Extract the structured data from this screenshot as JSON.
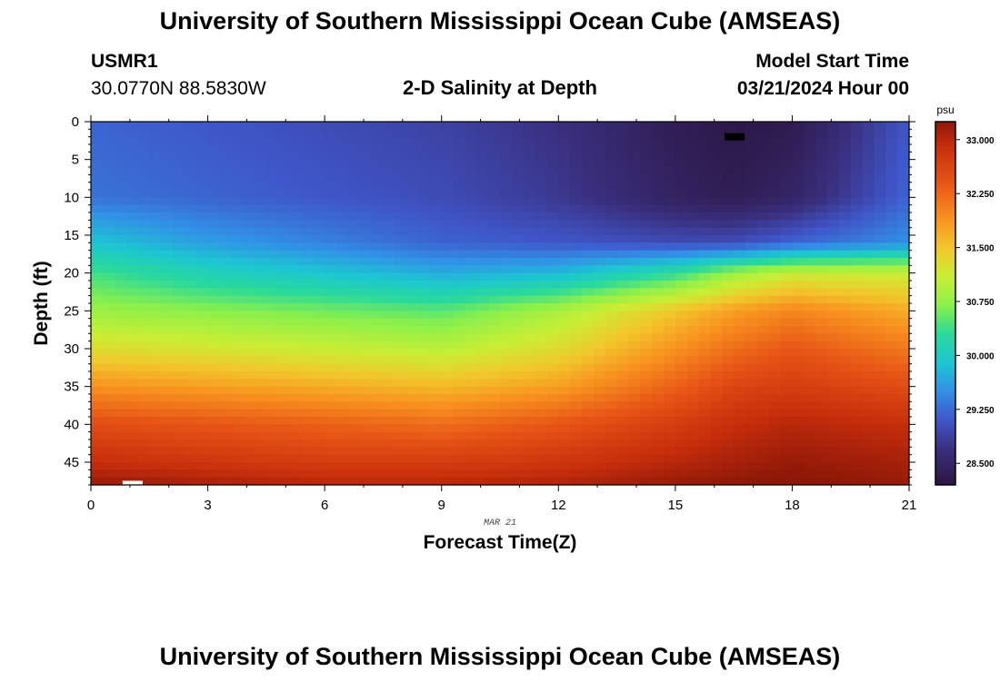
{
  "header": {
    "title": "University of Southern Mississippi Ocean Cube (AMSEAS)",
    "station_id": "USMR1",
    "location": "30.0770N  88.5830W",
    "subtitle": "2-D Salinity at Depth",
    "start_label": "Model Start Time",
    "start_value": "03/21/2024 Hour 00"
  },
  "footer": {
    "title": "University of Southern Mississippi Ocean Cube (AMSEAS)"
  },
  "chart_data": {
    "type": "heatmap",
    "title": "2-D Salinity at Depth",
    "xlabel": "Forecast Time(Z)",
    "ylabel": "Depth (ft)",
    "date_label": "MAR 21",
    "xlim": [
      0,
      21
    ],
    "ylim": [
      48,
      0
    ],
    "x_ticks": [
      "0",
      "3",
      "6",
      "9",
      "12",
      "15",
      "18",
      "21"
    ],
    "y_ticks": [
      "0",
      "5",
      "10",
      "15",
      "20",
      "25",
      "30",
      "35",
      "40",
      "45"
    ],
    "x_knots": [
      0,
      3,
      6,
      9,
      12,
      15,
      16.5,
      18,
      21
    ],
    "depth_knots": [
      0,
      10,
      16,
      20,
      25,
      30,
      35,
      40,
      45,
      48
    ],
    "grid_values": [
      [
        29.2,
        29.1,
        29.0,
        28.9,
        28.7,
        28.35,
        28.25,
        28.3,
        29.1
      ],
      [
        29.3,
        29.2,
        29.1,
        29.0,
        28.8,
        28.45,
        28.35,
        28.5,
        29.2
      ],
      [
        29.9,
        29.6,
        29.4,
        29.2,
        29.1,
        29.0,
        29.0,
        29.2,
        29.5
      ],
      [
        30.4,
        30.1,
        29.9,
        29.7,
        29.8,
        30.3,
        30.8,
        31.1,
        31.1
      ],
      [
        30.8,
        30.7,
        30.6,
        30.5,
        30.9,
        31.5,
        31.8,
        32.0,
        31.7
      ],
      [
        31.3,
        31.2,
        31.1,
        31.0,
        31.3,
        31.9,
        32.2,
        32.4,
        32.1
      ],
      [
        31.9,
        31.8,
        31.7,
        31.6,
        31.8,
        32.3,
        32.6,
        32.7,
        32.5
      ],
      [
        32.5,
        32.4,
        32.3,
        32.2,
        32.4,
        32.7,
        32.9,
        33.0,
        32.9
      ],
      [
        32.9,
        32.8,
        32.7,
        32.7,
        32.8,
        33.0,
        33.1,
        33.2,
        33.1
      ],
      [
        33.2,
        33.1,
        33.0,
        33.0,
        33.05,
        33.2,
        33.25,
        33.3,
        33.2
      ]
    ],
    "markers": [
      {
        "name": "black-marker",
        "x": 16.5,
        "depth": 2,
        "color": "#000000"
      },
      {
        "name": "white-marker",
        "x": 1.0,
        "depth": 47.7,
        "color": "#ffffff"
      }
    ],
    "colorbar": {
      "unit": "psu",
      "min": 28.2,
      "max": 33.25,
      "ticks": [
        "33.000",
        "32.250",
        "31.500",
        "30.750",
        "30.000",
        "29.250",
        "28.500"
      ],
      "stops": [
        {
          "v": 28.2,
          "c": "#2b1642"
        },
        {
          "v": 28.7,
          "c": "#3a2f7e"
        },
        {
          "v": 29.1,
          "c": "#3f56c9"
        },
        {
          "v": 29.5,
          "c": "#3290e6"
        },
        {
          "v": 29.9,
          "c": "#1cc6d2"
        },
        {
          "v": 30.3,
          "c": "#2ad99a"
        },
        {
          "v": 30.7,
          "c": "#8cf04a"
        },
        {
          "v": 31.1,
          "c": "#c9ee34"
        },
        {
          "v": 31.5,
          "c": "#f2c62c"
        },
        {
          "v": 31.9,
          "c": "#f8921f"
        },
        {
          "v": 32.4,
          "c": "#e75516"
        },
        {
          "v": 32.9,
          "c": "#c72e0c"
        },
        {
          "v": 33.25,
          "c": "#8e1808"
        }
      ]
    }
  }
}
